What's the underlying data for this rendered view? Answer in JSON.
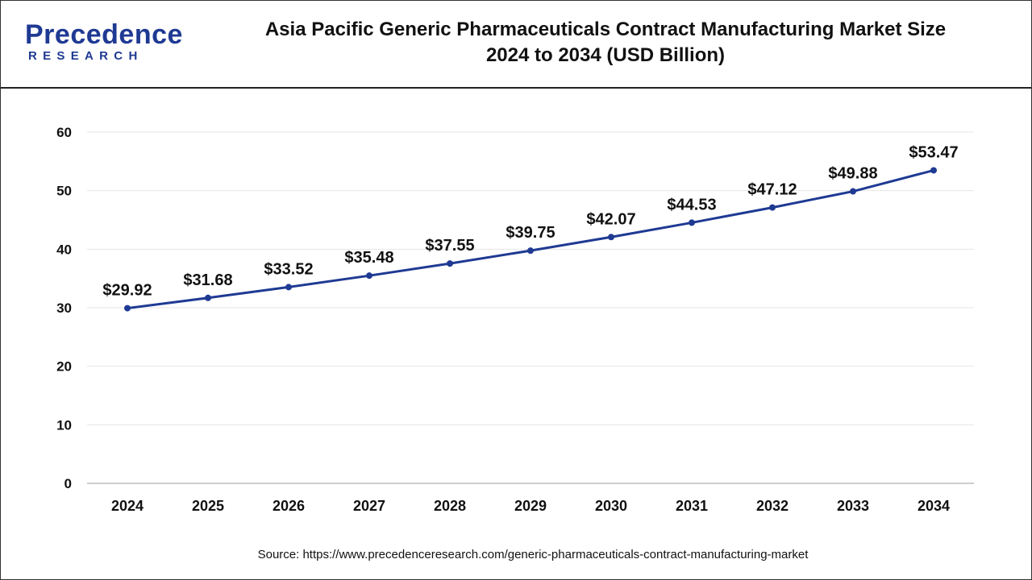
{
  "brand": {
    "name": "Precedence",
    "tagline": "RESEARCH",
    "color": "#1f3a93"
  },
  "header": {
    "title_line1": "Asia Pacific Generic Pharmaceuticals Contract Manufacturing Market Size",
    "title_line2": "2024 to 2034 (USD Billion)"
  },
  "source_text": "Source: https://www.precedenceresearch.com/generic-pharmaceuticals-contract-manufacturing-market",
  "chart_data": {
    "type": "line",
    "title": "Asia Pacific Generic Pharmaceuticals Contract Manufacturing Market Size 2024 to 2034 (USD Billion)",
    "xlabel": "",
    "ylabel": "",
    "categories": [
      "2024",
      "2025",
      "2026",
      "2027",
      "2028",
      "2029",
      "2030",
      "2031",
      "2032",
      "2033",
      "2034"
    ],
    "series": [
      {
        "values": [
          29.92,
          31.68,
          33.52,
          35.48,
          37.55,
          39.75,
          42.07,
          44.53,
          47.12,
          49.88,
          53.47
        ],
        "labels": [
          "$29.92",
          "$31.68",
          "$33.52",
          "$35.48",
          "$37.55",
          "$39.75",
          "$42.07",
          "$44.53",
          "$47.12",
          "$49.88",
          "$53.47"
        ],
        "color": "#1f3a93"
      }
    ],
    "ylim": [
      0,
      60
    ],
    "yticks": [
      "0",
      "10",
      "20",
      "30",
      "40",
      "50",
      "60"
    ],
    "grid": true,
    "legend": "none"
  }
}
